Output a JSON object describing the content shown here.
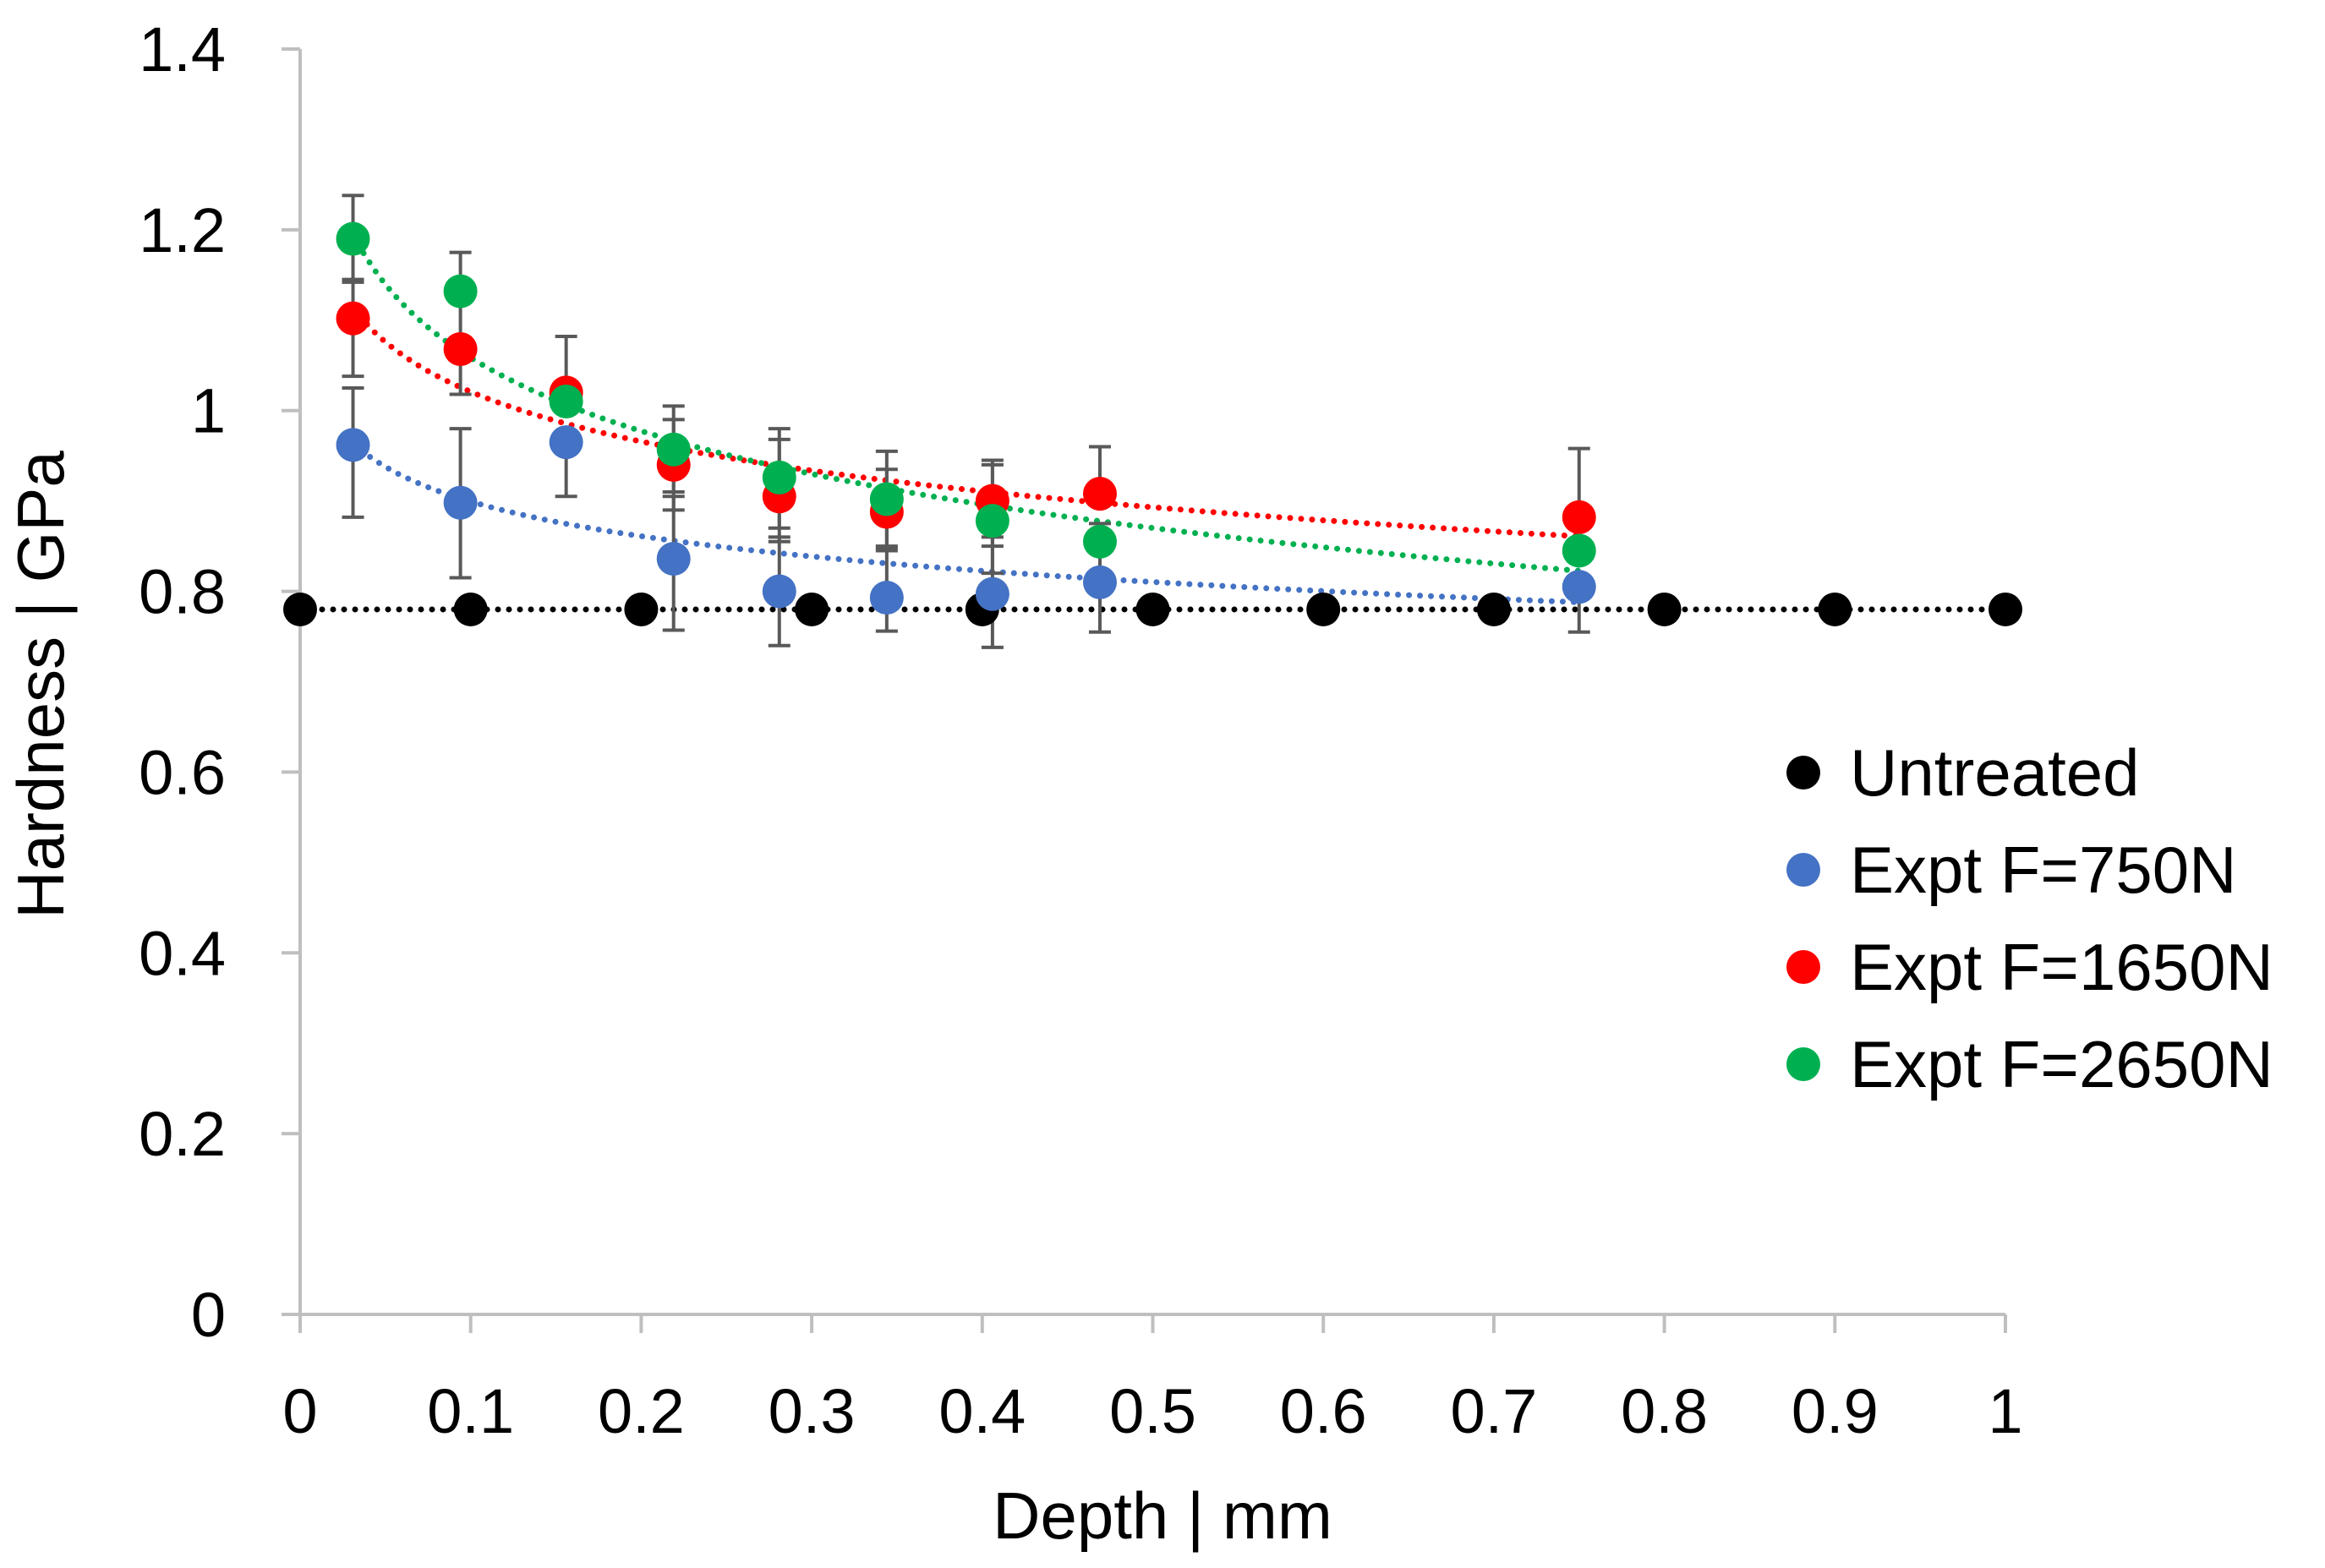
{
  "chart_data": {
    "type": "scatter",
    "title": "",
    "xlabel": "Depth | mm",
    "ylabel": "Hardness | GPa",
    "xlim": [
      0,
      1
    ],
    "ylim": [
      0,
      1.4
    ],
    "x_ticks": [
      0,
      0.1,
      0.2,
      0.3,
      0.4,
      0.5,
      0.6,
      0.7,
      0.8,
      0.9,
      1
    ],
    "x_tick_labels": [
      "0",
      "0.1",
      "0.2",
      "0.3",
      "0.4",
      "0.5",
      "0.6",
      "0.7",
      "0.8",
      "0.9",
      "1"
    ],
    "y_ticks": [
      0,
      0.2,
      0.4,
      0.6,
      0.8,
      1,
      1.2,
      1.4
    ],
    "y_tick_labels": [
      "0",
      "0.2",
      "0.4",
      "0.6",
      "0.8",
      "1",
      "1.2",
      "1.4"
    ],
    "grid": false,
    "legend_position": "right",
    "series": [
      {
        "name": "Untreated",
        "color": "#000000",
        "x": [
          0,
          0.1,
          0.2,
          0.3,
          0.4,
          0.5,
          0.6,
          0.7,
          0.8,
          0.9,
          1
        ],
        "y": [
          0.78,
          0.78,
          0.78,
          0.78,
          0.78,
          0.78,
          0.78,
          0.78,
          0.78,
          0.78,
          0.78
        ],
        "trendline": {
          "kind": "constant",
          "value": 0.78,
          "x_range": [
            0,
            1
          ]
        }
      },
      {
        "name": "Expt F=750N",
        "color": "#4472C4",
        "x": [
          0.031,
          0.094,
          0.156,
          0.219,
          0.281,
          0.344,
          0.406,
          0.469,
          0.75
        ],
        "y": [
          0.962,
          0.898,
          0.965,
          0.836,
          0.8,
          0.793,
          0.797,
          0.81,
          0.805
        ],
        "err_upper": [
          1.025,
          0.98,
          null,
          0.905,
          0.86,
          0.848,
          0.86,
          0.875,
          null
        ],
        "err_lower": [
          0.882,
          0.815,
          0.905,
          0.757,
          0.74,
          0.756,
          0.738,
          0.755,
          0.755
        ],
        "trendline": {
          "kind": "log",
          "a": 0.772,
          "b": -0.0553,
          "x_range": [
            0.031,
            0.75
          ]
        }
      },
      {
        "name": "Expt F=1650N",
        "color": "#FF0000",
        "x": [
          0.031,
          0.094,
          0.156,
          0.219,
          0.281,
          0.344,
          0.406,
          0.469,
          0.75
        ],
        "y": [
          1.102,
          1.068,
          1.02,
          0.94,
          0.905,
          0.888,
          0.9,
          0.908,
          0.882
        ],
        "err_upper": [
          1.145,
          null,
          1.082,
          0.99,
          0.968,
          0.935,
          0.945,
          0.96,
          0.958
        ],
        "err_lower": [
          1.038,
          1.018,
          null,
          0.89,
          0.855,
          0.845,
          0.85,
          null,
          null
        ],
        "trendline": {
          "kind": "log",
          "a": 0.838,
          "b": -0.0794,
          "x_range": [
            0.031,
            0.75
          ]
        }
      },
      {
        "name": "Expt F=2650N",
        "color": "#00B050",
        "x": [
          0.031,
          0.094,
          0.156,
          0.219,
          0.281,
          0.344,
          0.406,
          0.469,
          0.75
        ],
        "y": [
          1.19,
          1.132,
          1.01,
          0.957,
          0.926,
          0.902,
          0.878,
          0.855,
          0.845
        ],
        "err_upper": [
          1.238,
          1.175,
          null,
          1.005,
          0.98,
          0.955,
          0.94,
          null,
          null
        ],
        "err_lower": [
          1.142,
          1.08,
          null,
          0.91,
          0.87,
          0.85,
          0.82,
          null,
          null
        ],
        "trendline": {
          "kind": "log",
          "a": 0.789,
          "b": -0.117,
          "x_range": [
            0.031,
            0.75
          ]
        }
      }
    ]
  }
}
